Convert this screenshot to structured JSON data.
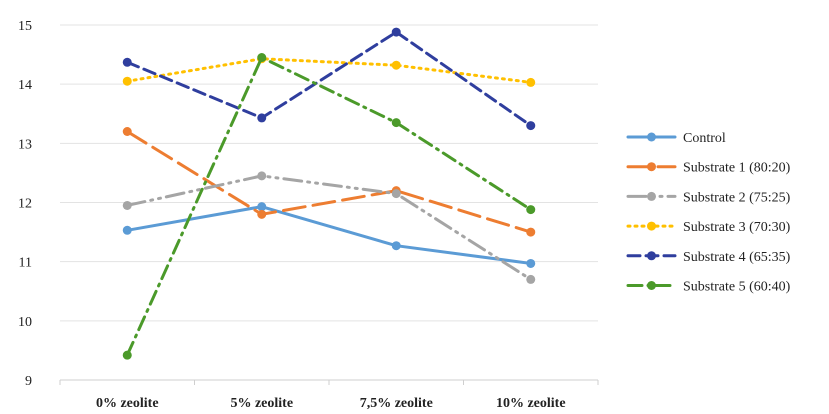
{
  "chart_data": {
    "type": "line",
    "title": "",
    "xlabel": "",
    "ylabel": "",
    "categories": [
      "0% zeolite",
      "5% zeolite",
      "7,5% zeolite",
      "10% zeolite"
    ],
    "ylim": [
      9,
      15
    ],
    "yticks": [
      "9",
      "10",
      "11",
      "12",
      "13",
      "14",
      "15"
    ],
    "grid": "horizontal",
    "legend_position": "right",
    "series": [
      {
        "name": "Control",
        "values": [
          11.53,
          11.93,
          11.27,
          10.97
        ],
        "color": "#5b9bd5",
        "dash": "solid"
      },
      {
        "name": "Substrate 1 (80:20)",
        "values": [
          13.2,
          11.8,
          12.2,
          11.5
        ],
        "color": "#ed7d31",
        "dash": "long-dash"
      },
      {
        "name": "Substrate 2 (75:25)",
        "values": [
          11.95,
          12.45,
          12.15,
          10.7
        ],
        "color": "#a5a5a5",
        "dash": "long-dash-dot-dot"
      },
      {
        "name": "Substrate 3 (70:30)",
        "values": [
          14.05,
          14.43,
          14.32,
          14.03
        ],
        "color": "#ffc000",
        "dash": "dot"
      },
      {
        "name": "Substrate 4 (65:35)",
        "values": [
          14.37,
          13.43,
          14.88,
          13.3
        ],
        "color": "#2f3e9e",
        "dash": "dash"
      },
      {
        "name": "Substrate 5 (60:40)",
        "values": [
          9.42,
          14.45,
          13.35,
          11.88
        ],
        "color": "#4b9a2a",
        "dash": "dash-dot"
      }
    ]
  }
}
